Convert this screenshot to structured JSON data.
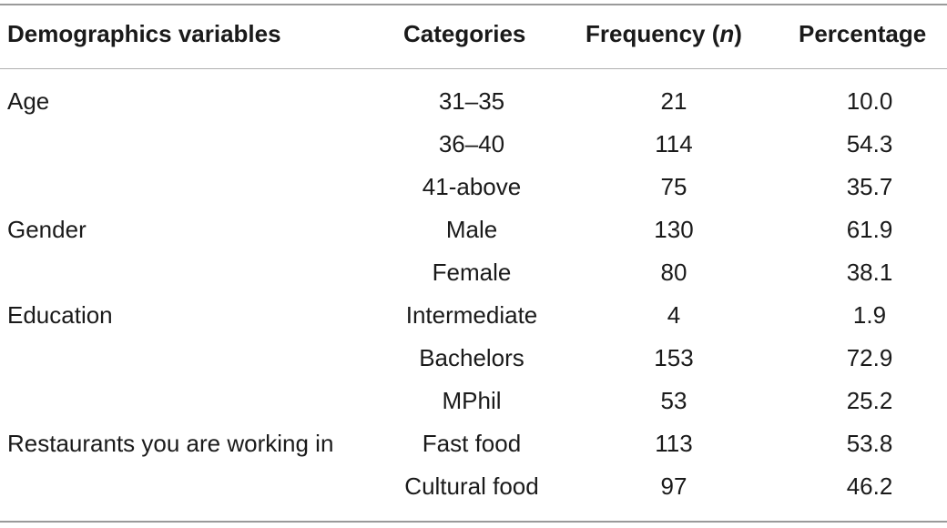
{
  "table": {
    "headers": {
      "variable": "Demographics variables",
      "category": "Categories",
      "frequency_prefix": "Frequency (",
      "frequency_n": "n",
      "frequency_suffix": ")",
      "percentage": "Percentage"
    },
    "rows": [
      {
        "variable": "Age",
        "category": "31–35",
        "frequency": "21",
        "percentage": "10.0"
      },
      {
        "variable": "",
        "category": "36–40",
        "frequency": "114",
        "percentage": "54.3"
      },
      {
        "variable": "",
        "category": "41-above",
        "frequency": "75",
        "percentage": "35.7"
      },
      {
        "variable": "Gender",
        "category": "Male",
        "frequency": "130",
        "percentage": "61.9"
      },
      {
        "variable": "",
        "category": "Female",
        "frequency": "80",
        "percentage": "38.1"
      },
      {
        "variable": "Education",
        "category": "Intermediate",
        "frequency": "4",
        "percentage": "1.9"
      },
      {
        "variable": "",
        "category": "Bachelors",
        "frequency": "153",
        "percentage": "72.9"
      },
      {
        "variable": "",
        "category": "MPhil",
        "frequency": "53",
        "percentage": "25.2"
      },
      {
        "variable": "Restaurants you are working in",
        "category": "Fast food",
        "frequency": "113",
        "percentage": "53.8"
      },
      {
        "variable": "",
        "category": "Cultural food",
        "frequency": "97",
        "percentage": "46.2"
      }
    ]
  }
}
